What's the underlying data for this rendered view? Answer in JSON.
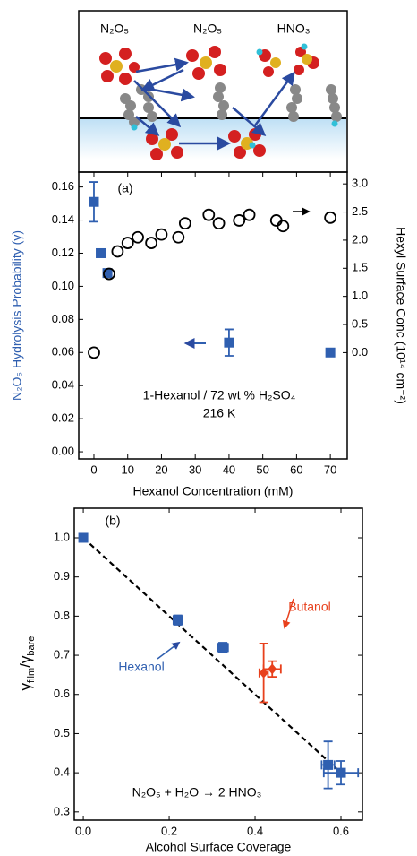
{
  "diagram": {
    "labels": [
      "N₂O₅",
      "N₂O₅",
      "HNO₃"
    ]
  },
  "chart_data": [
    {
      "type": "scatter",
      "label": "(a)",
      "annotations": [
        "1-Hexanol / 72 wt % H₂SO₄",
        "216 K"
      ],
      "xlabel": "Hexanol Concentration (mM)",
      "ylabel": "N₂O₅ Hydrolysis Probability (γ)",
      "y2label": "Hexyl Surface Conc (10¹⁴ cm⁻²)",
      "xlim": [
        -4.5,
        75
      ],
      "xticks": [
        0,
        10,
        20,
        30,
        40,
        50,
        60,
        70
      ],
      "ylim": [
        -0.0043,
        0.169
      ],
      "yticks": [
        {
          "value": 0,
          "label": "0.00"
        },
        0.02,
        0.04,
        0.06,
        0.08,
        {
          "value": 0.1,
          "label": "0.10"
        },
        0.12,
        0.14,
        0.16
      ],
      "y2lim": [
        -1.89,
        3.21
      ],
      "y2ticks": [
        {
          "value": 0,
          "label": "0.0"
        },
        0.5,
        {
          "value": 1,
          "label": "1.0"
        },
        1.5,
        {
          "value": 2,
          "label": "2.0"
        },
        2.5,
        {
          "value": 3,
          "label": "3.0"
        }
      ],
      "series": [
        {
          "color": "#2f5fb0",
          "marker": "square",
          "x": [
            0,
            2,
            4,
            40,
            70
          ],
          "values": [
            0.151,
            0.12,
            0.108,
            0.066,
            0.06
          ],
          "errors": [
            0.012,
            null,
            null,
            0.008,
            null
          ]
        },
        {
          "color": "#000000",
          "marker": "circle",
          "axis": "y2",
          "x": [
            0,
            4.5,
            7,
            10,
            13,
            17,
            20,
            25,
            27,
            34,
            37,
            43,
            46,
            54,
            56,
            70
          ],
          "values": [
            0.0,
            1.4,
            1.8,
            1.95,
            2.05,
            1.95,
            2.1,
            2.05,
            2.3,
            2.45,
            2.3,
            2.35,
            2.45,
            2.35,
            2.25,
            2.4
          ]
        }
      ]
    },
    {
      "type": "scatter",
      "label": "(b)",
      "annotations": [
        "N₂O₅ + H₂O → 2 HNO₃"
      ],
      "xlabel": "Alcohol Surface Coverage",
      "ylabel_parts": [
        "γ",
        "film",
        "/γ",
        "bare"
      ],
      "xlim": [
        -0.021,
        0.65
      ],
      "xticks": [
        {
          "value": 0,
          "label": "0.0"
        },
        0.2,
        0.4,
        0.6
      ],
      "ylim": [
        0.279,
        1.0755
      ],
      "yticks": [
        0.3,
        0.4,
        0.5,
        0.6,
        0.7,
        0.8,
        0.9,
        {
          "value": 1,
          "label": "1.0"
        }
      ],
      "series": [
        {
          "type": "line",
          "color": "#000000",
          "dash": true,
          "x": [
            0,
            0.6
          ],
          "values": [
            1.0,
            0.4
          ]
        },
        {
          "name": "Hexanol",
          "color": "#2f5fb0",
          "marker": "square",
          "x": [
            0.0,
            0.22,
            0.325,
            0.57,
            0.6
          ],
          "values": [
            1.0,
            0.79,
            0.72,
            0.42,
            0.4
          ],
          "errors": [
            null,
            0.012,
            0.012,
            0.06,
            0.03
          ],
          "xerrors": [
            null,
            0.01,
            0.012,
            0.015,
            0.04
          ]
        },
        {
          "name": "Butanol",
          "color": "#e8401c",
          "marker": "diamond",
          "x": [
            0.42,
            0.44
          ],
          "values": [
            0.655,
            0.665
          ],
          "errors": [
            0.075,
            0.02
          ],
          "xerrors": [
            0.01,
            0.02
          ]
        }
      ]
    }
  ]
}
